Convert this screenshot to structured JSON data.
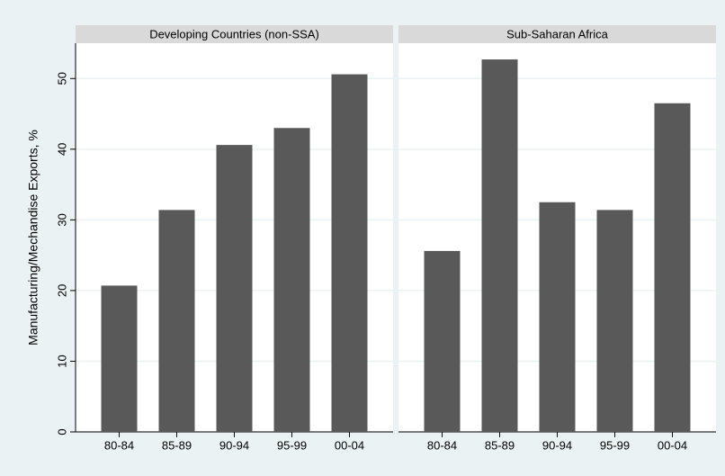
{
  "chart_data": [
    {
      "type": "bar",
      "title": "Developing Countries (non-SSA)",
      "y_label": "Manufacturing/Mechandise Exports, %",
      "categories": [
        "80-84",
        "85-89",
        "90-94",
        "95-99",
        "00-04"
      ],
      "values": [
        20.7,
        31.4,
        40.6,
        43.0,
        50.6
      ],
      "color": "#595959",
      "ylim": [
        0,
        55
      ],
      "yticks": [
        0,
        10,
        20,
        30,
        40,
        50
      ],
      "grid": true
    },
    {
      "type": "bar",
      "title": "Sub-Saharan Africa",
      "categories": [
        "80-84",
        "85-89",
        "90-94",
        "95-99",
        "00-04"
      ],
      "values": [
        25.6,
        52.7,
        32.5,
        31.4,
        46.5
      ],
      "color": "#595959",
      "ylim": [
        0,
        55
      ],
      "yticks": [
        0,
        10,
        20,
        30,
        40,
        50
      ],
      "grid": true
    }
  ]
}
